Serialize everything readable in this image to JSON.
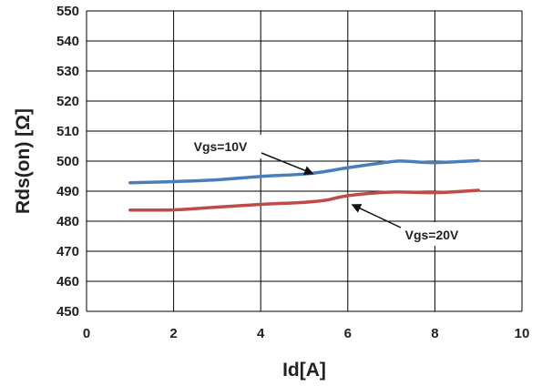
{
  "chart_data": {
    "type": "line",
    "title": "",
    "xlabel": "Id[A]",
    "ylabel": "Rds(on) [Ω]",
    "xlim": [
      0,
      10
    ],
    "ylim": [
      450,
      550
    ],
    "xticks": [
      0,
      2,
      4,
      6,
      8,
      10
    ],
    "yticks": [
      450,
      460,
      470,
      480,
      490,
      500,
      510,
      520,
      530,
      540,
      550
    ],
    "grid": true,
    "legend": "none",
    "series": [
      {
        "name": "Vgs=10V",
        "color": "#4a7ebb",
        "x": [
          1,
          2,
          3,
          4,
          5,
          5.5,
          6,
          7,
          7.3,
          8,
          9
        ],
        "y": [
          492.8,
          493.2,
          493.8,
          494.9,
          495.7,
          496.6,
          497.8,
          499.8,
          500.0,
          499.5,
          500.2
        ]
      },
      {
        "name": "Vgs=20V",
        "color": "#be4b48",
        "x": [
          1,
          2,
          3,
          4,
          5,
          5.5,
          6,
          7,
          8,
          9
        ],
        "y": [
          483.7,
          483.8,
          484.7,
          485.6,
          486.3,
          487.0,
          488.5,
          489.7,
          489.5,
          490.3
        ]
      }
    ],
    "annotations": [
      {
        "text": "Vgs=10V",
        "arrow_to": [
          5.2,
          495.8
        ]
      },
      {
        "text": "Vgs=20V",
        "arrow_to": [
          6.1,
          485.5
        ]
      }
    ]
  }
}
